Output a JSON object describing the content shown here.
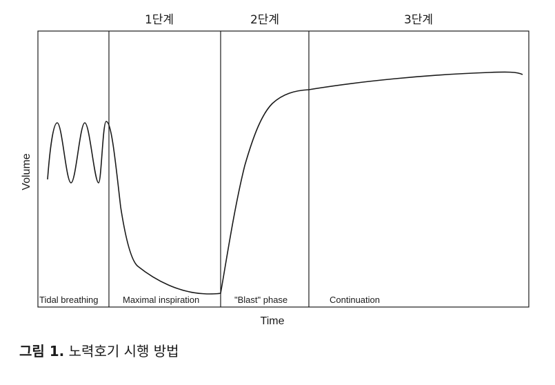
{
  "stages": [
    "1단계",
    "2단계",
    "3단계"
  ],
  "phases": [
    "Tidal breathing",
    "Maximal inspiration",
    "\"Blast\" phase",
    "Continuation"
  ],
  "axes": {
    "y_label": "Volume",
    "x_label": "Time"
  },
  "caption": {
    "number": "그림 1.",
    "text": "노력호기 시행 방법"
  }
}
